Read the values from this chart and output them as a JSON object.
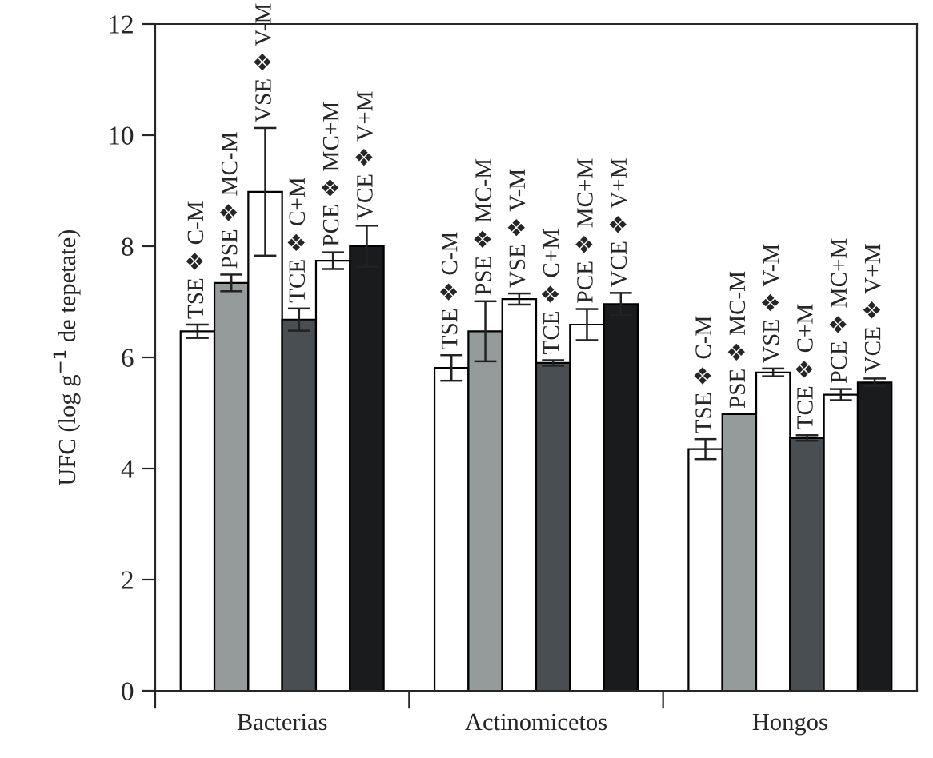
{
  "chart_data": {
    "type": "bar",
    "ylabel": "UFC (log g$^{−1}$ de tepetate)",
    "categories": [
      "Bacterias",
      "Actinomicetos",
      "Hongos"
    ],
    "series": [
      {
        "name": "TSE ❖ C-M",
        "color": "#ffffff",
        "values": [
          6.47,
          5.81,
          4.35
        ],
        "errors": [
          0.12,
          0.23,
          0.18
        ]
      },
      {
        "name": "PSE ❖ MC-M",
        "color": "#959a9b",
        "values": [
          7.34,
          6.47,
          4.98
        ],
        "errors": [
          0.15,
          0.54,
          null
        ]
      },
      {
        "name": "VSE ❖ V-M",
        "color": "#ffffff",
        "values": [
          8.98,
          7.05,
          5.73
        ],
        "errors": [
          1.15,
          0.1,
          0.07
        ]
      },
      {
        "name": "TCE ❖ C+M",
        "color": "#494e52",
        "values": [
          6.68,
          5.9,
          4.55
        ],
        "errors": [
          0.2,
          0.05,
          0.05
        ]
      },
      {
        "name": "PCE ❖ MC+M",
        "color": "#ffffff",
        "values": [
          7.74,
          6.59,
          5.33
        ],
        "errors": [
          0.15,
          0.28,
          0.1
        ]
      },
      {
        "name": "VCE ❖ V+M",
        "color": "#1a1b1d",
        "values": [
          8.0,
          6.96,
          5.55
        ],
        "errors": [
          0.37,
          0.2,
          0.07
        ]
      }
    ],
    "ylim": [
      0,
      12
    ],
    "yticks": [
      0,
      2,
      4,
      6,
      8,
      10,
      12
    ],
    "grid": false,
    "legend": false
  }
}
